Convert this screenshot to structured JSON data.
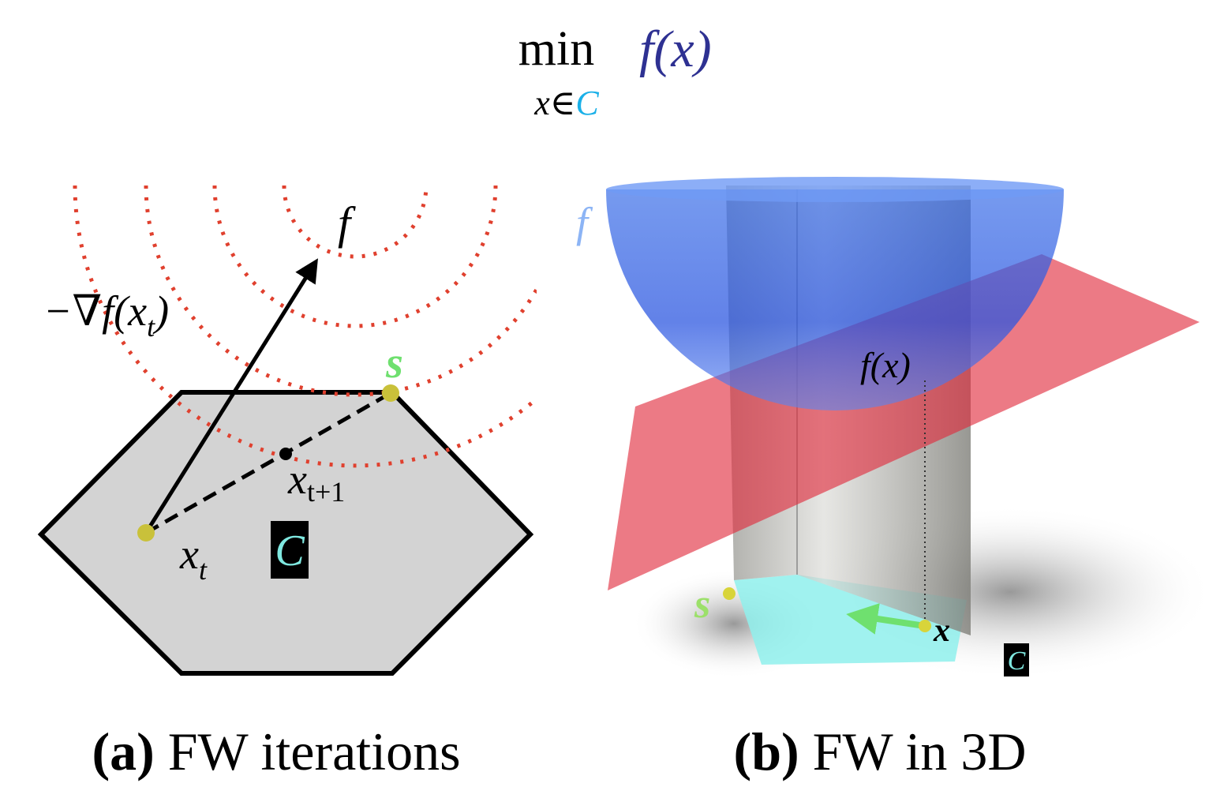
{
  "header": {
    "operator": "min",
    "subscript": {
      "variable": "x",
      "relation": "∈",
      "set": "C"
    },
    "objective": "f(x)"
  },
  "panel_a": {
    "function_label": "f",
    "gradient_label": {
      "text": "−∇f(x",
      "sub": "t",
      "close": ")"
    },
    "vertex_label": "s",
    "next_iterate_label": {
      "base": "x",
      "sub": "t+1"
    },
    "iterate_label": {
      "base": "x",
      "sub": "t"
    },
    "set_label": "C",
    "caption": {
      "tag": "(a)",
      "text": "FW iterations"
    }
  },
  "panel_b": {
    "function_label": "f",
    "value_label": "f(x)",
    "vertex_label": "s",
    "point_label": "x",
    "set_label": "C",
    "caption": {
      "tag": "(b)",
      "text": "FW in 3D"
    }
  }
}
